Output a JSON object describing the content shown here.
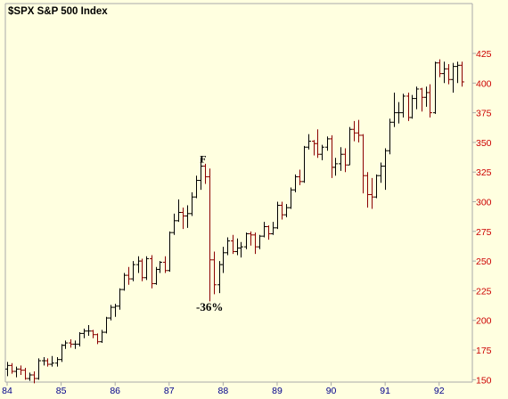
{
  "chart_data": {
    "type": "ohlc",
    "title": "$SPX S&P 500 Index",
    "xlabel": "",
    "ylabel": "",
    "x_tick_labels": [
      "84",
      "85",
      "86",
      "87",
      "88",
      "89",
      "90",
      "91",
      "92"
    ],
    "y_ticks": [
      150,
      175,
      200,
      225,
      250,
      275,
      300,
      325,
      350,
      375,
      400,
      425
    ],
    "ylim": [
      145,
      440
    ],
    "xlim": [
      1984.0,
      1992.45
    ],
    "grid": false,
    "colors": {
      "background": "#ffffe0",
      "up_bar": "#000000",
      "down_bar": "#8b0000",
      "x_tick_text": "#00008b",
      "y_tick_text": "#cc0000",
      "axis": "#aaaaaa"
    },
    "annotations": [
      {
        "text": "F",
        "x": 1987.63,
        "y": 333
      },
      {
        "text": "-36%",
        "x": 1987.75,
        "y": 208
      }
    ],
    "series": [
      {
        "columns": [
          "date",
          "open",
          "high",
          "low",
          "close"
        ],
        "points": [
          [
            1984.0,
            159,
            165,
            153,
            162
          ],
          [
            1984.08,
            162,
            164,
            155,
            157
          ],
          [
            1984.17,
            157,
            161,
            152,
            159
          ],
          [
            1984.25,
            159,
            162,
            154,
            158
          ],
          [
            1984.33,
            158,
            160,
            150,
            151
          ],
          [
            1984.42,
            151,
            156,
            149,
            154
          ],
          [
            1984.5,
            154,
            157,
            147,
            151
          ],
          [
            1984.58,
            151,
            168,
            150,
            166
          ],
          [
            1984.67,
            166,
            169,
            162,
            166
          ],
          [
            1984.75,
            166,
            168,
            161,
            163
          ],
          [
            1984.83,
            163,
            170,
            161,
            164
          ],
          [
            1984.92,
            164,
            169,
            161,
            167
          ],
          [
            1985.0,
            167,
            180,
            165,
            179
          ],
          [
            1985.08,
            179,
            183,
            176,
            181
          ],
          [
            1985.17,
            181,
            184,
            177,
            180
          ],
          [
            1985.25,
            180,
            183,
            176,
            180
          ],
          [
            1985.33,
            180,
            190,
            178,
            189
          ],
          [
            1985.42,
            189,
            193,
            185,
            191
          ],
          [
            1985.5,
            191,
            196,
            187,
            191
          ],
          [
            1985.58,
            191,
            192,
            185,
            188
          ],
          [
            1985.67,
            188,
            189,
            180,
            182
          ],
          [
            1985.75,
            182,
            192,
            181,
            190
          ],
          [
            1985.83,
            190,
            203,
            189,
            202
          ],
          [
            1985.92,
            202,
            213,
            200,
            211
          ],
          [
            1986.0,
            211,
            214,
            203,
            212
          ],
          [
            1986.08,
            212,
            227,
            209,
            226
          ],
          [
            1986.17,
            226,
            240,
            225,
            238
          ],
          [
            1986.25,
            238,
            245,
            230,
            235
          ],
          [
            1986.33,
            235,
            250,
            233,
            247
          ],
          [
            1986.42,
            247,
            254,
            240,
            250
          ],
          [
            1986.5,
            250,
            252,
            233,
            236
          ],
          [
            1986.58,
            236,
            254,
            234,
            252
          ],
          [
            1986.67,
            252,
            255,
            227,
            231
          ],
          [
            1986.75,
            231,
            245,
            230,
            243
          ],
          [
            1986.83,
            243,
            250,
            240,
            249
          ],
          [
            1986.92,
            249,
            254,
            240,
            242
          ],
          [
            1987.0,
            242,
            275,
            241,
            274
          ],
          [
            1987.08,
            274,
            290,
            272,
            284
          ],
          [
            1987.17,
            284,
            302,
            283,
            291
          ],
          [
            1987.25,
            291,
            295,
            277,
            288
          ],
          [
            1987.33,
            288,
            297,
            278,
            290
          ],
          [
            1987.42,
            290,
            308,
            288,
            304
          ],
          [
            1987.5,
            304,
            322,
            303,
            318
          ],
          [
            1987.58,
            318,
            337,
            310,
            330
          ],
          [
            1987.67,
            330,
            332,
            315,
            321
          ],
          [
            1987.75,
            321,
            328,
            216,
            251
          ],
          [
            1987.83,
            251,
            258,
            222,
            230
          ],
          [
            1987.92,
            230,
            250,
            223,
            247
          ],
          [
            1988.0,
            247,
            262,
            240,
            257
          ],
          [
            1988.08,
            257,
            270,
            255,
            267
          ],
          [
            1988.17,
            267,
            272,
            256,
            258
          ],
          [
            1988.25,
            258,
            269,
            255,
            261
          ],
          [
            1988.33,
            261,
            266,
            253,
            262
          ],
          [
            1988.42,
            262,
            274,
            260,
            273
          ],
          [
            1988.5,
            273,
            275,
            263,
            272
          ],
          [
            1988.58,
            272,
            274,
            256,
            262
          ],
          [
            1988.67,
            262,
            272,
            260,
            271
          ],
          [
            1988.75,
            271,
            283,
            270,
            279
          ],
          [
            1988.83,
            279,
            280,
            268,
            273
          ],
          [
            1988.92,
            273,
            283,
            272,
            278
          ],
          [
            1989.0,
            278,
            300,
            277,
            297
          ],
          [
            1989.08,
            297,
            300,
            285,
            289
          ],
          [
            1989.17,
            289,
            298,
            287,
            295
          ],
          [
            1989.25,
            295,
            312,
            294,
            310
          ],
          [
            1989.33,
            310,
            323,
            308,
            321
          ],
          [
            1989.42,
            321,
            327,
            314,
            317
          ],
          [
            1989.5,
            317,
            347,
            316,
            346
          ],
          [
            1989.58,
            346,
            357,
            344,
            351
          ],
          [
            1989.67,
            351,
            352,
            339,
            349
          ],
          [
            1989.75,
            349,
            361,
            337,
            340
          ],
          [
            1989.83,
            340,
            348,
            335,
            346
          ],
          [
            1989.92,
            346,
            355,
            343,
            353
          ],
          [
            1990.0,
            353,
            356,
            320,
            329
          ],
          [
            1990.08,
            329,
            337,
            322,
            332
          ],
          [
            1990.17,
            332,
            346,
            326,
            340
          ],
          [
            1990.25,
            340,
            345,
            325,
            331
          ],
          [
            1990.33,
            331,
            363,
            331,
            361
          ],
          [
            1990.42,
            361,
            368,
            351,
            358
          ],
          [
            1990.5,
            358,
            369,
            350,
            356
          ],
          [
            1990.58,
            356,
            357,
            307,
            322
          ],
          [
            1990.67,
            322,
            325,
            295,
            306
          ],
          [
            1990.75,
            306,
            320,
            294,
            304
          ],
          [
            1990.83,
            304,
            323,
            303,
            322
          ],
          [
            1990.92,
            322,
            333,
            316,
            330
          ],
          [
            1991.0,
            330,
            345,
            310,
            343
          ],
          [
            1991.08,
            343,
            370,
            340,
            367
          ],
          [
            1991.17,
            367,
            392,
            363,
            375
          ],
          [
            1991.25,
            375,
            384,
            366,
            375
          ],
          [
            1991.33,
            375,
            391,
            371,
            389
          ],
          [
            1991.42,
            389,
            392,
            368,
            371
          ],
          [
            1991.5,
            371,
            390,
            370,
            387
          ],
          [
            1991.58,
            387,
            397,
            378,
            395
          ],
          [
            1991.67,
            395,
            396,
            376,
            388
          ],
          [
            1991.75,
            388,
            397,
            380,
            392
          ],
          [
            1991.83,
            392,
            399,
            371,
            375
          ],
          [
            1991.92,
            375,
            418,
            374,
            417
          ],
          [
            1992.0,
            417,
            420,
            405,
            408
          ],
          [
            1992.08,
            408,
            418,
            400,
            412
          ],
          [
            1992.17,
            412,
            416,
            399,
            403
          ],
          [
            1992.25,
            403,
            417,
            392,
            414
          ],
          [
            1992.33,
            414,
            418,
            400,
            415
          ],
          [
            1992.42,
            415,
            418,
            397,
            401
          ]
        ]
      }
    ]
  }
}
